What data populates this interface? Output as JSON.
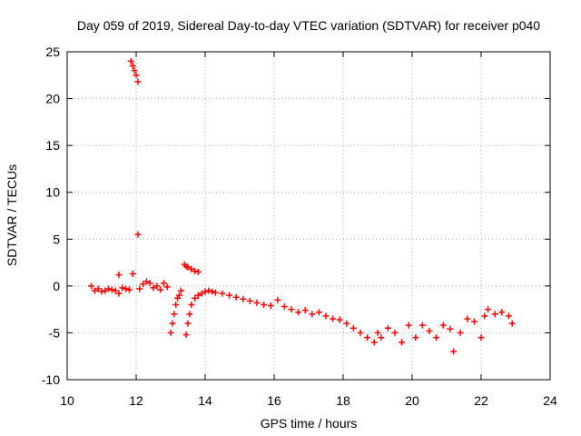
{
  "chart_data": {
    "type": "scatter",
    "title": "Day 059 of 2019, Sidereal Day-to-day VTEC variation (SDTVAR) for receiver p040",
    "xlabel": "GPS time / hours",
    "ylabel": "SDTVAR / TECUs",
    "xlim": [
      10,
      24
    ],
    "ylim": [
      -10,
      25
    ],
    "xticks": [
      "10",
      "12",
      "14",
      "16",
      "18",
      "20",
      "22",
      "24"
    ],
    "yticks": [
      "-10",
      "-5",
      "0",
      "5",
      "10",
      "15",
      "20",
      "25"
    ],
    "grid": true,
    "legend": "none",
    "marker": "+",
    "color": "#ff0000",
    "series": [
      {
        "name": "SDTVAR",
        "x": [
          10.7,
          10.8,
          10.9,
          11.0,
          11.1,
          11.2,
          11.3,
          11.4,
          11.5,
          11.6,
          11.7,
          11.8,
          11.5,
          11.9,
          11.85,
          11.9,
          11.95,
          12.0,
          12.05,
          12.05,
          12.1,
          12.2,
          12.3,
          12.4,
          12.5,
          12.6,
          12.7,
          12.8,
          12.9,
          13.0,
          13.05,
          13.1,
          13.15,
          13.2,
          13.25,
          13.3,
          13.4,
          13.45,
          13.5,
          13.6,
          13.7,
          13.8,
          13.45,
          13.5,
          13.55,
          13.6,
          13.7,
          13.8,
          13.9,
          14.0,
          14.1,
          14.2,
          14.3,
          14.5,
          14.7,
          14.9,
          15.1,
          15.3,
          15.5,
          15.7,
          15.9,
          16.1,
          16.3,
          16.5,
          16.7,
          16.9,
          17.1,
          17.3,
          17.5,
          17.7,
          17.9,
          18.1,
          18.3,
          18.5,
          18.7,
          18.9,
          19.0,
          19.1,
          19.3,
          19.5,
          19.7,
          19.9,
          20.1,
          20.3,
          20.5,
          20.7,
          20.9,
          21.1,
          21.2,
          21.4,
          21.6,
          21.8,
          22.0,
          22.1,
          22.2,
          22.4,
          22.6,
          22.8,
          22.9
        ],
        "y": [
          0.0,
          -0.5,
          -0.3,
          -0.6,
          -0.5,
          -0.3,
          -0.4,
          -0.5,
          1.2,
          -0.2,
          -0.3,
          -0.4,
          -0.8,
          1.3,
          24.0,
          23.5,
          23.0,
          22.5,
          21.8,
          5.5,
          -0.3,
          0.2,
          0.5,
          0.3,
          -0.2,
          0.0,
          -0.4,
          0.3,
          -0.1,
          -5.0,
          -4.0,
          -3.0,
          -2.0,
          -1.3,
          -1.0,
          -0.5,
          2.3,
          2.1,
          2.0,
          1.8,
          1.6,
          1.5,
          -5.2,
          -4.0,
          -3.0,
          -2.0,
          -1.3,
          -1.0,
          -0.8,
          -0.6,
          -0.5,
          -0.6,
          -0.7,
          -0.8,
          -1.0,
          -1.2,
          -1.4,
          -1.6,
          -1.8,
          -2.0,
          -2.1,
          -1.5,
          -2.2,
          -2.5,
          -2.8,
          -2.6,
          -3.0,
          -2.8,
          -3.2,
          -3.5,
          -3.6,
          -4.0,
          -4.5,
          -5.0,
          -5.5,
          -6.0,
          -5.0,
          -5.5,
          -4.5,
          -5.0,
          -6.0,
          -4.2,
          -5.5,
          -4.2,
          -4.8,
          -5.5,
          -4.2,
          -4.6,
          -7.0,
          -5.0,
          -3.5,
          -3.8,
          -5.5,
          -3.2,
          -2.5,
          -3.0,
          -2.8,
          -3.2,
          -4.0
        ]
      }
    ]
  }
}
